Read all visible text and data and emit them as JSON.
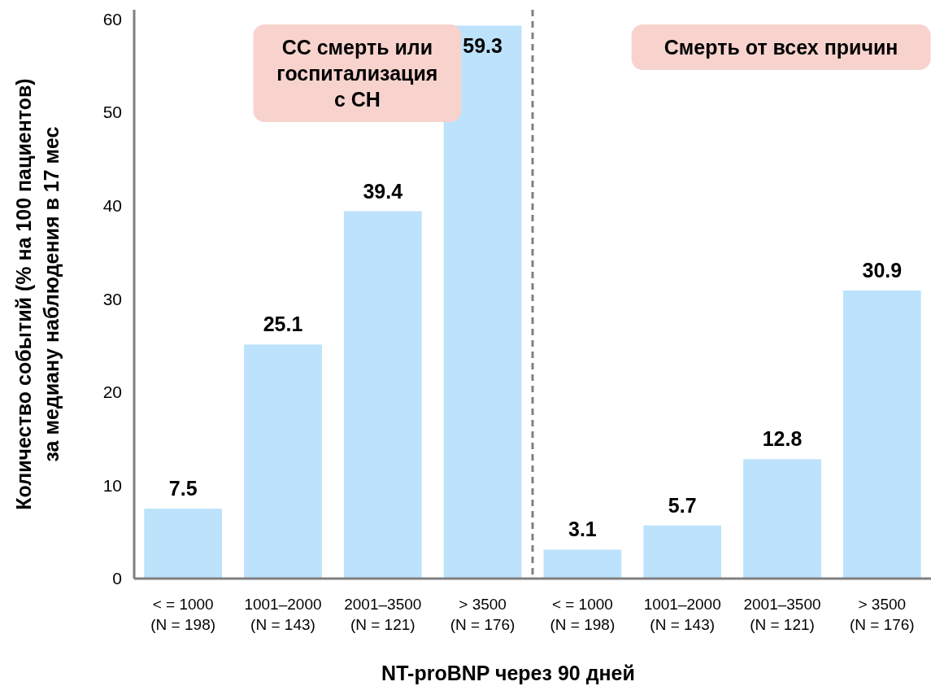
{
  "chart_data": {
    "type": "bar",
    "xlabel": "NT-proBNP через 90 дней",
    "ylabel": "Количество событий (% на 100 пациентов)\nза медиану наблюдения в 17 мес",
    "categories": [
      "< = 1000\n(N = 198)",
      "1001–2000\n(N = 143)",
      "2001–3500\n(N = 121)",
      "> 3500\n(N = 176)",
      "< = 1000\n(N = 198)",
      "1001–2000\n(N = 143)",
      "2001–3500\n(N = 121)",
      "> 3500\n(N = 176)"
    ],
    "values": [
      7.5,
      25.1,
      39.4,
      59.3,
      3.1,
      5.7,
      12.8,
      30.9
    ],
    "color": "#bde2fb",
    "data_labels": true,
    "ylim": [
      0,
      61
    ],
    "yticks": [
      0,
      10,
      20,
      30,
      40,
      50,
      60
    ],
    "grid": false,
    "annotations": [
      "СС смерть или\nгоспитализация\nс СН",
      "Смерть от всех причин"
    ]
  }
}
